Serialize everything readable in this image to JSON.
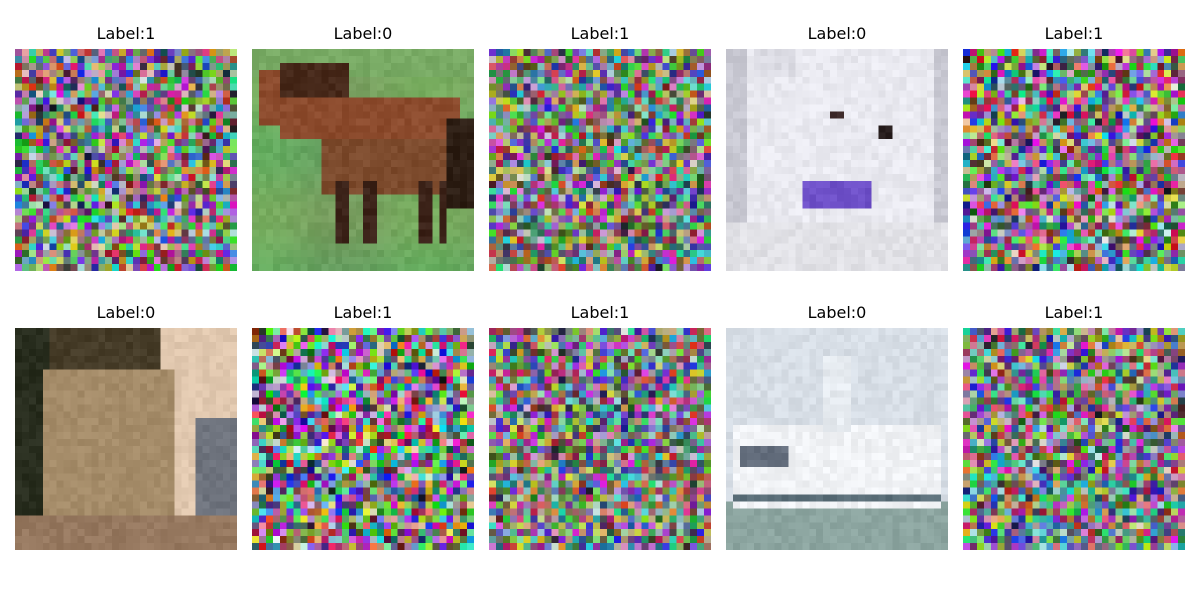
{
  "figure": {
    "panels": [
      {
        "title": "Label:1",
        "kind": "noise",
        "base": "#6e6a70",
        "noise": 0.85
      },
      {
        "title": "Label:0",
        "kind": "horse",
        "base": "#6fa85a",
        "noise": 0.0
      },
      {
        "title": "Label:1",
        "kind": "noise",
        "base": "#7a7370",
        "noise": 0.8
      },
      {
        "title": "Label:0",
        "kind": "dog",
        "base": "#e9e9f0",
        "noise": 0.0
      },
      {
        "title": "Label:1",
        "kind": "noise",
        "base": "#7b7a78",
        "noise": 0.9
      },
      {
        "title": "Label:0",
        "kind": "cat",
        "base": "#8a7456",
        "noise": 0.0
      },
      {
        "title": "Label:1",
        "kind": "noise",
        "base": "#767474",
        "noise": 0.95
      },
      {
        "title": "Label:1",
        "kind": "noise",
        "base": "#7d777a",
        "noise": 0.8
      },
      {
        "title": "Label:0",
        "kind": "ship",
        "base": "#c8d2d8",
        "noise": 0.0
      },
      {
        "title": "Label:1",
        "kind": "noise",
        "base": "#7a7a78",
        "noise": 0.85
      }
    ]
  }
}
